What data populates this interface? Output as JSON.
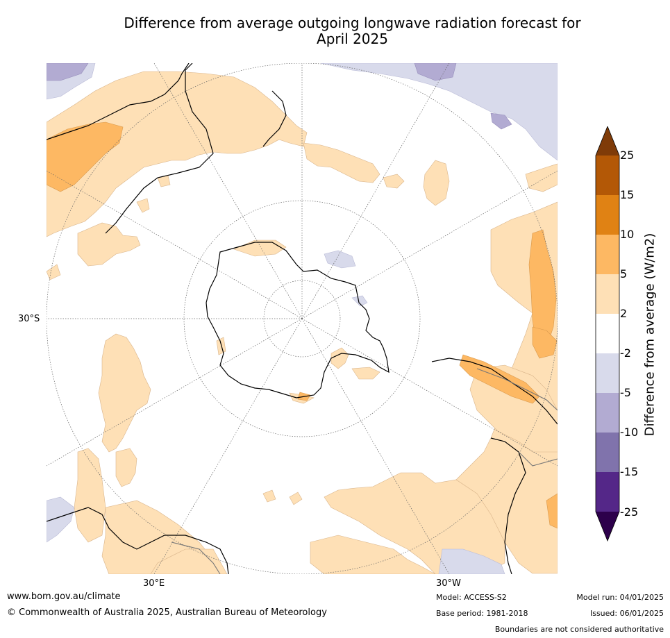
{
  "title_line1": "Difference from average outgoing longwave radiation forecast for",
  "title_line2": "April 2025",
  "axis_labels": {
    "lat": "30°S",
    "lon_east": "30°E",
    "lon_west": "30°W"
  },
  "colorbar": {
    "title": "Difference from average (W/m2)",
    "ticks": [
      "25",
      "15",
      "10",
      "5",
      "2",
      "-2",
      "-5",
      "-10",
      "-15",
      "-25"
    ],
    "colors": {
      "over": "#7f3b08",
      "b15_25": "#b35806",
      "b10_15": "#e08214",
      "b5_10": "#fdb863",
      "b2_5": "#fee0b6",
      "neutral": "#ffffff",
      "n2_5": "#d8daeb",
      "n5_10": "#b2abd2",
      "n10_15": "#8073ac",
      "n15_25": "#542788",
      "under": "#2d004b"
    }
  },
  "footer": {
    "url": "www.bom.gov.au/climate",
    "copyright": "© Commonwealth of Australia 2025, Australian Bureau of Meteorology",
    "model": "Model: ACCESS-S2",
    "base_period": "Base period: 1981-2018",
    "model_run": "Model run: 04/01/2025",
    "issued": "Issued: 06/01/2025",
    "disclaimer": "Boundaries are not considered authoritative"
  }
}
